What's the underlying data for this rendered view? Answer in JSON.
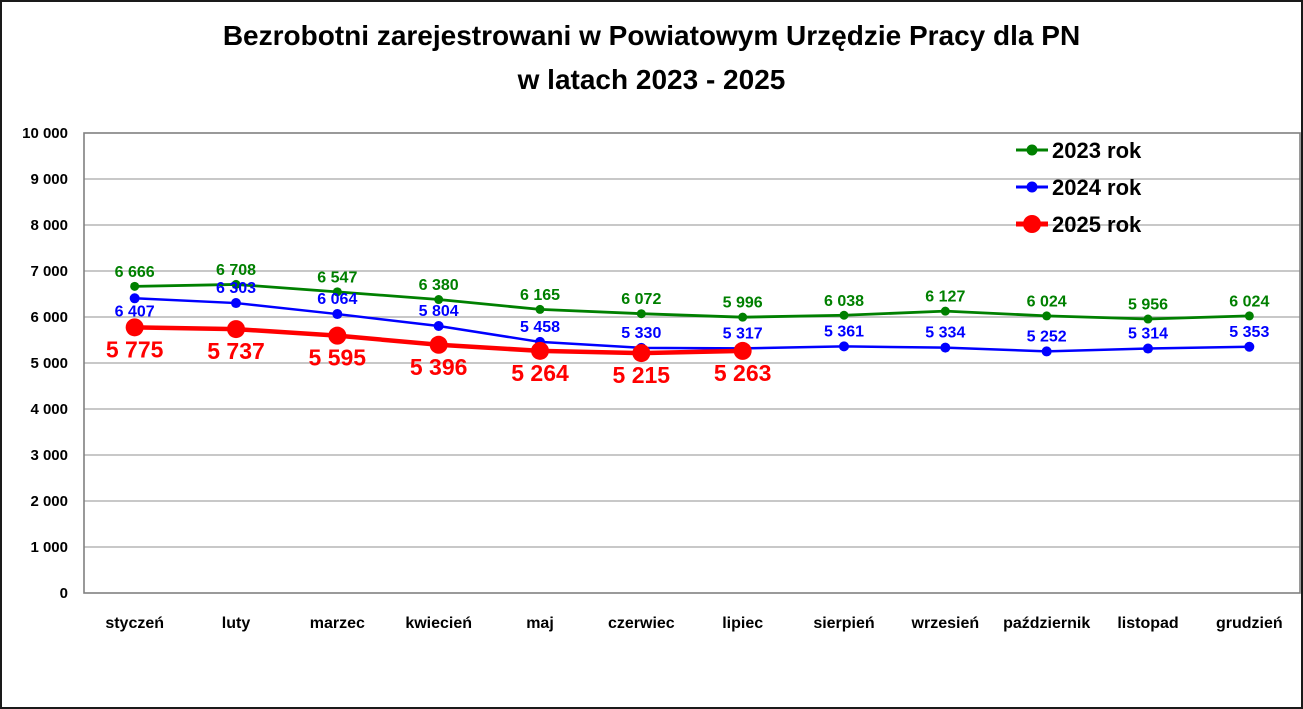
{
  "title": {
    "line1": "Bezrobotni zarejestrowani w Powiatowym Urzędzie Pracy dla PN",
    "line2": "w latach 2023 - 2025"
  },
  "chart_data": {
    "type": "line",
    "title": "Bezrobotni zarejestrowani w Powiatowym Urzędzie Pracy dla PN w latach 2023 - 2025",
    "categories": [
      "styczeń",
      "luty",
      "marzec",
      "kwiecień",
      "maj",
      "czerwiec",
      "lipiec",
      "sierpień",
      "wrzesień",
      "październik",
      "listopad",
      "grudzień"
    ],
    "series": [
      {
        "name": "2023 rok",
        "color": "#008000",
        "values": [
          6666,
          6708,
          6547,
          6380,
          6165,
          6072,
          5996,
          6038,
          6127,
          6024,
          5956,
          6024
        ]
      },
      {
        "name": "2024 rok",
        "color": "#0000ff",
        "values": [
          6407,
          6303,
          6064,
          5804,
          5458,
          5330,
          5317,
          5361,
          5334,
          5252,
          5314,
          5353
        ]
      },
      {
        "name": "2025 rok",
        "color": "#ff0000",
        "values": [
          5775,
          5737,
          5595,
          5396,
          5264,
          5215,
          5263
        ]
      }
    ],
    "xlabel": "",
    "ylabel": "",
    "ylim": [
      0,
      10000
    ],
    "y_tick_step": 1000,
    "y_ticks": [
      "0",
      "1 000",
      "2 000",
      "3 000",
      "4 000",
      "5 000",
      "6 000",
      "7 000",
      "8 000",
      "9 000",
      "10 000"
    ],
    "grid": "horizontal",
    "grid_color": "#a6a6a6",
    "frame_color": "#808080",
    "legend_position": "top-right",
    "data_labels": "on"
  }
}
